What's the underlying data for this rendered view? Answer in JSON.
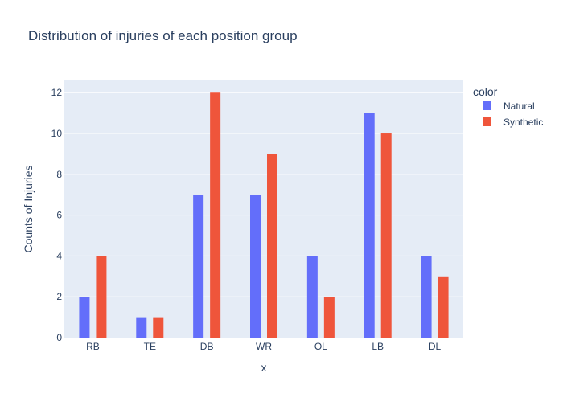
{
  "chart_data": {
    "type": "bar",
    "title": "Distribution of injuries of each position group",
    "xlabel": "x",
    "ylabel": "Counts of Injuries",
    "categories": [
      "RB",
      "TE",
      "DB",
      "WR",
      "OL",
      "LB",
      "DL"
    ],
    "series": [
      {
        "name": "Natural",
        "values": [
          2,
          1,
          7,
          7,
          4,
          11,
          4
        ],
        "color": "#636efa"
      },
      {
        "name": "Synthetic",
        "values": [
          4,
          1,
          12,
          9,
          2,
          10,
          3
        ],
        "color": "#ef553b"
      }
    ],
    "ylim": [
      0,
      12.6
    ],
    "yticks": [
      0,
      2,
      4,
      6,
      8,
      10,
      12
    ],
    "grid": true,
    "legend": {
      "title": "color",
      "position": "top-right"
    },
    "plot_background": "#e5ecf6"
  }
}
